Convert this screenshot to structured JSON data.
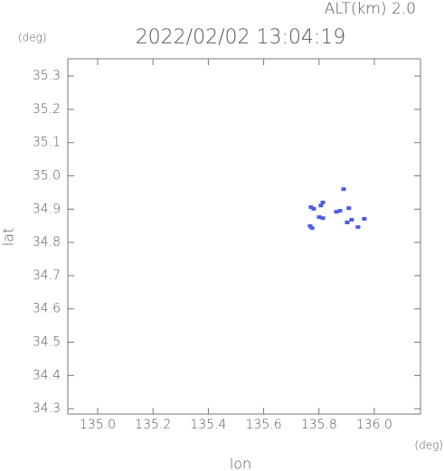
{
  "chart_data": {
    "type": "scatter",
    "title": "2022/02/02 13:04:19",
    "altitude_label": "ALT(km)  2.0",
    "y_unit": "(deg)",
    "x_unit": "(deg)",
    "x_label": "lon",
    "y_label": "lat",
    "xlim": [
      134.892,
      136.167
    ],
    "ylim": [
      34.284,
      35.352
    ],
    "xticks": [
      {
        "value": 135.0,
        "label": "135.0"
      },
      135.2,
      135.4,
      135.6,
      135.8,
      {
        "value": 136.0,
        "label": "136.0"
      }
    ],
    "yticks": [
      34.3,
      34.4,
      34.5,
      34.6,
      34.7,
      34.8,
      34.9,
      {
        "value": 35.0,
        "label": "35.0"
      },
      35.1,
      35.2,
      35.3
    ],
    "color": "#4a5ae6",
    "x": [
      135.771,
      135.781,
      135.775,
      135.768,
      135.807,
      135.814,
      135.801,
      135.814,
      135.863,
      135.876,
      135.889,
      135.908,
      135.918,
      135.902,
      135.941,
      135.964
    ],
    "values": [
      34.906,
      34.901,
      34.843,
      34.849,
      34.911,
      34.92,
      34.876,
      34.873,
      34.892,
      34.895,
      34.96,
      34.903,
      34.868,
      34.86,
      34.846,
      34.871
    ]
  }
}
